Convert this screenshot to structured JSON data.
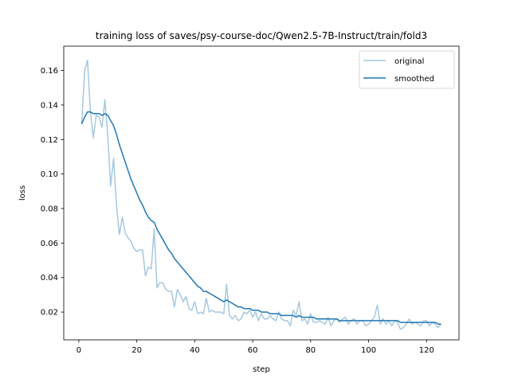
{
  "chart_data": {
    "type": "line",
    "title": "training loss of saves/psy-course-doc/Qwen2.5-7B-Instruct/train/fold3",
    "xlabel": "step",
    "ylabel": "loss",
    "xlim": [
      -5.2,
      131.2
    ],
    "ylim": [
      0.0039,
      0.1741
    ],
    "xticks": [
      0,
      20,
      40,
      60,
      80,
      100,
      120
    ],
    "yticks": [
      0.02,
      0.04,
      0.06,
      0.08,
      0.1,
      0.12,
      0.14,
      0.16
    ],
    "xtick_labels": [
      "0",
      "20",
      "40",
      "60",
      "80",
      "100",
      "120"
    ],
    "ytick_labels": [
      "0.02",
      "0.04",
      "0.06",
      "0.08",
      "0.10",
      "0.12",
      "0.14",
      "0.16"
    ],
    "legend": {
      "position": "upper right"
    },
    "grid": false,
    "x": [
      1,
      2,
      3,
      4,
      5,
      6,
      7,
      8,
      9,
      10,
      11,
      12,
      13,
      14,
      15,
      16,
      17,
      18,
      19,
      20,
      21,
      22,
      23,
      24,
      25,
      26,
      27,
      28,
      29,
      30,
      31,
      32,
      33,
      34,
      35,
      36,
      37,
      38,
      39,
      40,
      41,
      42,
      43,
      44,
      45,
      46,
      47,
      48,
      49,
      50,
      51,
      52,
      53,
      54,
      55,
      56,
      57,
      58,
      59,
      60,
      61,
      62,
      63,
      64,
      65,
      66,
      67,
      68,
      69,
      70,
      71,
      72,
      73,
      74,
      75,
      76,
      77,
      78,
      79,
      80,
      81,
      82,
      83,
      84,
      85,
      86,
      87,
      88,
      89,
      90,
      91,
      92,
      93,
      94,
      95,
      96,
      97,
      98,
      99,
      100,
      101,
      102,
      103,
      104,
      105,
      106,
      107,
      108,
      109,
      110,
      111,
      112,
      113,
      114,
      115,
      116,
      117,
      118,
      119,
      120,
      121,
      122,
      123,
      124,
      125
    ],
    "series": [
      {
        "name": "original",
        "color": "#a6c8e0",
        "values": [
          0.129,
          0.16,
          0.166,
          0.136,
          0.121,
          0.134,
          0.133,
          0.127,
          0.143,
          0.122,
          0.093,
          0.109,
          0.082,
          0.065,
          0.075,
          0.066,
          0.063,
          0.061,
          0.057,
          0.055,
          0.056,
          0.056,
          0.041,
          0.046,
          0.045,
          0.068,
          0.034,
          0.037,
          0.037,
          0.033,
          0.032,
          0.032,
          0.023,
          0.033,
          0.03,
          0.026,
          0.029,
          0.022,
          0.021,
          0.026,
          0.019,
          0.02,
          0.019,
          0.028,
          0.02,
          0.021,
          0.02,
          0.02,
          0.02,
          0.019,
          0.036,
          0.018,
          0.016,
          0.018,
          0.015,
          0.016,
          0.02,
          0.019,
          0.021,
          0.017,
          0.02,
          0.015,
          0.019,
          0.016,
          0.016,
          0.018,
          0.016,
          0.015,
          0.02,
          0.016,
          0.015,
          0.015,
          0.012,
          0.021,
          0.018,
          0.026,
          0.015,
          0.016,
          0.013,
          0.019,
          0.014,
          0.014,
          0.015,
          0.014,
          0.013,
          0.017,
          0.012,
          0.015,
          0.016,
          0.014,
          0.016,
          0.017,
          0.013,
          0.015,
          0.016,
          0.013,
          0.015,
          0.015,
          0.012,
          0.013,
          0.015,
          0.017,
          0.024,
          0.013,
          0.016,
          0.013,
          0.015,
          0.012,
          0.015,
          0.014,
          0.01,
          0.011,
          0.013,
          0.016,
          0.013,
          0.014,
          0.013,
          0.012,
          0.015,
          0.015,
          0.012,
          0.014,
          0.013,
          0.011,
          0.013
        ]
      },
      {
        "name": "smoothed",
        "color": "#1f77b4",
        "values": [
          0.129,
          0.133,
          0.136,
          0.136,
          0.135,
          0.135,
          0.135,
          0.134,
          0.135,
          0.134,
          0.131,
          0.128,
          0.123,
          0.117,
          0.112,
          0.107,
          0.102,
          0.097,
          0.093,
          0.089,
          0.085,
          0.082,
          0.078,
          0.075,
          0.073,
          0.072,
          0.068,
          0.065,
          0.062,
          0.059,
          0.056,
          0.054,
          0.051,
          0.049,
          0.047,
          0.045,
          0.043,
          0.041,
          0.039,
          0.037,
          0.035,
          0.034,
          0.032,
          0.032,
          0.031,
          0.03,
          0.029,
          0.028,
          0.027,
          0.026,
          0.027,
          0.026,
          0.025,
          0.024,
          0.023,
          0.023,
          0.022,
          0.022,
          0.022,
          0.021,
          0.021,
          0.021,
          0.02,
          0.02,
          0.02,
          0.019,
          0.019,
          0.019,
          0.019,
          0.018,
          0.018,
          0.018,
          0.018,
          0.018,
          0.017,
          0.018,
          0.017,
          0.017,
          0.017,
          0.017,
          0.017,
          0.016,
          0.016,
          0.016,
          0.016,
          0.016,
          0.016,
          0.016,
          0.016,
          0.015,
          0.015,
          0.015,
          0.015,
          0.015,
          0.015,
          0.015,
          0.015,
          0.015,
          0.015,
          0.015,
          0.015,
          0.015,
          0.015,
          0.015,
          0.015,
          0.015,
          0.015,
          0.015,
          0.015,
          0.015,
          0.014,
          0.014,
          0.014,
          0.014,
          0.014,
          0.014,
          0.014,
          0.014,
          0.014,
          0.014,
          0.014,
          0.014,
          0.014,
          0.013,
          0.013
        ]
      }
    ]
  }
}
